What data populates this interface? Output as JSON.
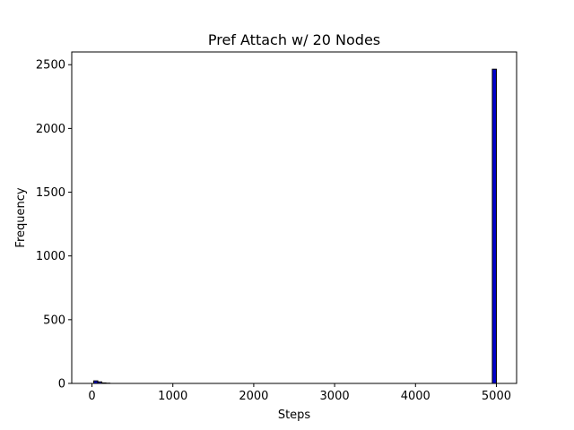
{
  "chart_data": {
    "type": "bar",
    "title": "Pref Attach w/ 20 Nodes",
    "xlabel": "Steps",
    "ylabel": "Frequency",
    "xlim": [
      -250,
      5250
    ],
    "ylim": [
      0,
      2600
    ],
    "xticks": [
      0,
      1000,
      2000,
      3000,
      4000,
      5000
    ],
    "yticks": [
      0,
      500,
      1000,
      1500,
      2000,
      2500
    ],
    "bar_color": "#0000cc",
    "edge_color": "#000000",
    "grid": false,
    "legend": "none",
    "bins": [
      {
        "x0": 22,
        "x1": 72,
        "value": 20
      },
      {
        "x0": 72,
        "x1": 122,
        "value": 12
      },
      {
        "x0": 122,
        "x1": 172,
        "value": 4
      },
      {
        "x0": 172,
        "x1": 222,
        "value": 2
      },
      {
        "x0": 4950,
        "x1": 5000,
        "value": 2465
      }
    ]
  }
}
